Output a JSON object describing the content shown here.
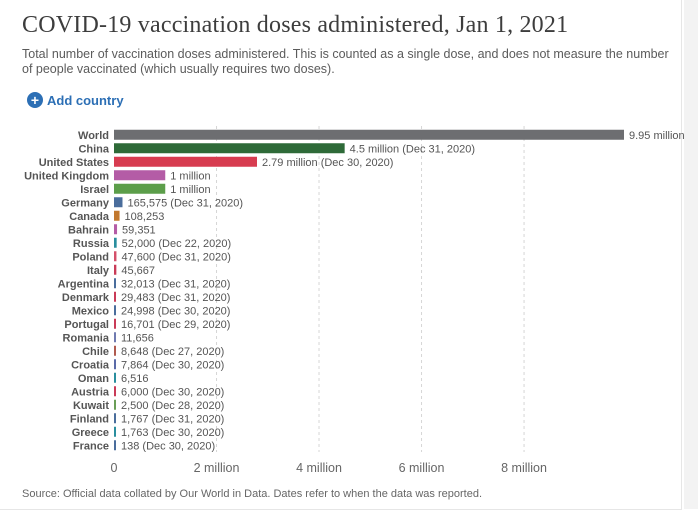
{
  "title": "COVID-19 vaccination doses administered, Jan 1, 2021",
  "subtitle": "Total number of vaccination doses administered. This is counted as a single dose, and does not measure the number of people vaccinated (which usually requires two doses).",
  "add_country_label": "Add country",
  "add_country_icon": "plus-circle-icon",
  "source": "Source: Official data collated by Our World in Data. Dates refer to when the data was reported.",
  "chart_data": {
    "type": "bar",
    "orientation": "horizontal",
    "title": "COVID-19 vaccination doses administered, Jan 1, 2021",
    "xlabel": "",
    "ylabel": "",
    "xlim": [
      0,
      9950000
    ],
    "x_ticks": [
      {
        "value": 0,
        "label": "0"
      },
      {
        "value": 2000000,
        "label": "2 million"
      },
      {
        "value": 4000000,
        "label": "4 million"
      },
      {
        "value": 6000000,
        "label": "6 million"
      },
      {
        "value": 8000000,
        "label": "8 million"
      }
    ],
    "grid": "vertical dashed",
    "categories": [
      "World",
      "China",
      "United States",
      "United Kingdom",
      "Israel",
      "Germany",
      "Canada",
      "Bahrain",
      "Russia",
      "Poland",
      "Italy",
      "Argentina",
      "Denmark",
      "Mexico",
      "Portugal",
      "Romania",
      "Chile",
      "Croatia",
      "Oman",
      "Austria",
      "Kuwait",
      "Finland",
      "Greece",
      "France"
    ],
    "values": [
      9950000,
      4500000,
      2790000,
      1000000,
      1000000,
      165575,
      108253,
      59351,
      52000,
      47600,
      45667,
      32013,
      29483,
      24998,
      16701,
      11656,
      8648,
      7864,
      6516,
      6000,
      2500,
      1767,
      1763,
      138
    ],
    "value_labels": [
      "9.95 million",
      "4.5 million (Dec 31, 2020)",
      "2.79 million (Dec 30, 2020)",
      "1 million",
      "1 million",
      "165,575 (Dec 31, 2020)",
      "108,253",
      "59,351",
      "52,000 (Dec 22, 2020)",
      "47,600 (Dec 31, 2020)",
      "45,667",
      "32,013 (Dec 31, 2020)",
      "29,483 (Dec 31, 2020)",
      "24,998 (Dec 30, 2020)",
      "16,701 (Dec 29, 2020)",
      "11,656",
      "8,648 (Dec 27, 2020)",
      "7,864 (Dec 30, 2020)",
      "6,516",
      "6,000 (Dec 30, 2020)",
      "2,500 (Dec 28, 2020)",
      "1,767 (Dec 31, 2020)",
      "1,763 (Dec 30, 2020)",
      "138 (Dec 30, 2020)"
    ],
    "colors": [
      "#6d6e71",
      "#2e6a38",
      "#d73c50",
      "#b45ca6",
      "#5c9e4a",
      "#4a6d9c",
      "#c2782e",
      "#b45ca6",
      "#2a8e9e",
      "#d4506a",
      "#c93a57",
      "#4a6d9c",
      "#c93a57",
      "#4a6d9c",
      "#c93a57",
      "#6f7ab0",
      "#b05a4e",
      "#5a6aa8",
      "#2a8e9e",
      "#c93a57",
      "#6a9e57",
      "#4a6d9c",
      "#2a8e9e",
      "#4a6d9c"
    ]
  }
}
